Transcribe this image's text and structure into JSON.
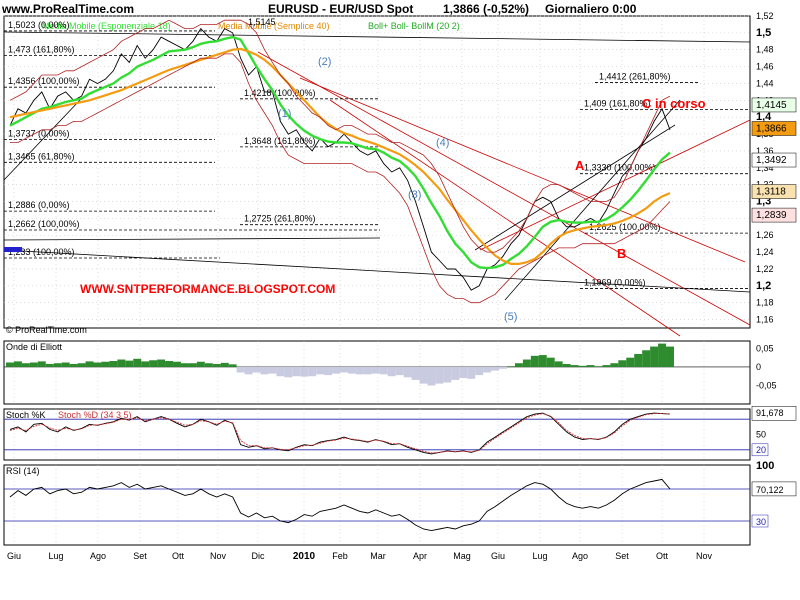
{
  "header": {
    "site": "www.ProRealTime.com",
    "instrument": "EURUSD - EUR/USD Spot",
    "quote": "1,3866 (-0,52%)",
    "period": "Giornaliero  0:00"
  },
  "legend": {
    "ema": "Media Mobile (Esponenziale 18)",
    "sma": "Media Mobile (Semplice 40)",
    "boll": "Boll+  Boll-  BollM (20 2)",
    "price_tag": "1,5145"
  },
  "watermark": "WWW.SNTPERFORMANCE.BLOGSPOT.COM",
  "copyright": "© ProRealTime.com",
  "colors": {
    "price": "#000000",
    "ema": "#33dd33",
    "sma": "#f39c12",
    "bollinger": "#b22222",
    "grid": "#c8c8c8",
    "oscillator": "#2e8b2e",
    "osc_fill": "#c9cbe0",
    "stoch_k": "#000000",
    "stoch_d": "#cc3333",
    "rsi": "#000000",
    "accent": "#ff0000"
  },
  "chart_data": [
    {
      "type": "line",
      "title": "EURUSD - EUR/USD Spot",
      "ylim": [
        1.15,
        1.52
      ],
      "grid": true,
      "y_ticks": [
        "1,52",
        "1,5",
        "1,48",
        "1,46",
        "1,44",
        "1,42",
        "1,4",
        "1,38",
        "1,36",
        "1,34",
        "1,32",
        "1,3",
        "1,28",
        "1,26",
        "1,24",
        "1,22",
        "1,2",
        "1,18",
        "1,16"
      ],
      "x_tick_labels": [
        "Giu",
        "Lug",
        "Ago",
        "Set",
        "Ott",
        "Nov",
        "Dic",
        "2010",
        "Feb",
        "Mar",
        "Apr",
        "Mag",
        "Giu",
        "Lug",
        "Ago",
        "Set",
        "Ott",
        "Nov"
      ],
      "series": [
        {
          "name": "EUR/USD",
          "values": [
            1.39,
            1.41,
            1.405,
            1.42,
            1.43,
            1.41,
            1.425,
            1.43,
            1.42,
            1.425,
            1.445,
            1.44,
            1.445,
            1.455,
            1.475,
            1.465,
            1.485,
            1.47,
            1.48,
            1.495,
            1.49,
            1.485,
            1.48,
            1.49,
            1.505,
            1.495,
            1.49,
            1.505,
            1.5,
            1.47,
            1.45,
            1.46,
            1.43,
            1.43,
            1.395,
            1.38,
            1.385,
            1.37,
            1.36,
            1.375,
            1.365,
            1.37,
            1.38,
            1.37,
            1.36,
            1.355,
            1.36,
            1.345,
            1.335,
            1.34,
            1.325,
            1.3,
            1.27,
            1.24,
            1.23,
            1.22,
            1.22,
            1.21,
            1.195,
            1.2,
            1.22,
            1.225,
            1.235,
            1.25,
            1.26,
            1.28,
            1.3,
            1.305,
            1.3,
            1.28,
            1.27,
            1.27,
            1.275,
            1.28,
            1.275,
            1.29,
            1.31,
            1.33,
            1.34,
            1.36,
            1.375,
            1.395,
            1.41,
            1.385
          ]
        },
        {
          "name": "Media Mobile (Esponenziale 18)",
          "values": [
            1.39,
            1.395,
            1.4,
            1.405,
            1.41,
            1.412,
            1.415,
            1.418,
            1.42,
            1.422,
            1.428,
            1.432,
            1.436,
            1.44,
            1.447,
            1.452,
            1.46,
            1.464,
            1.468,
            1.473,
            1.478,
            1.479,
            1.48,
            1.483,
            1.487,
            1.489,
            1.49,
            1.493,
            1.495,
            1.492,
            1.476,
            1.46,
            1.445,
            1.432,
            1.415,
            1.402,
            1.392,
            1.384,
            1.378,
            1.374,
            1.371,
            1.37,
            1.37,
            1.369,
            1.366,
            1.363,
            1.362,
            1.358,
            1.352,
            1.348,
            1.34,
            1.33,
            1.315,
            1.298,
            1.283,
            1.265,
            1.25,
            1.24,
            1.228,
            1.222,
            1.221,
            1.222,
            1.225,
            1.232,
            1.238,
            1.247,
            1.258,
            1.27,
            1.276,
            1.278,
            1.276,
            1.275,
            1.275,
            1.276,
            1.276,
            1.279,
            1.285,
            1.293,
            1.302,
            1.313,
            1.325,
            1.338,
            1.35,
            1.358
          ]
        },
        {
          "name": "Media Mobile (Semplice 40)",
          "values": [
            1.4,
            1.402,
            1.404,
            1.406,
            1.408,
            1.41,
            1.412,
            1.414,
            1.416,
            1.418,
            1.42,
            1.423,
            1.426,
            1.429,
            1.432,
            1.436,
            1.44,
            1.444,
            1.448,
            1.452,
            1.456,
            1.459,
            1.462,
            1.465,
            1.468,
            1.471,
            1.474,
            1.477,
            1.48,
            1.481,
            1.478,
            1.474,
            1.468,
            1.46,
            1.45,
            1.44,
            1.43,
            1.42,
            1.41,
            1.4,
            1.392,
            1.386,
            1.381,
            1.378,
            1.374,
            1.371,
            1.368,
            1.364,
            1.36,
            1.356,
            1.35,
            1.343,
            1.335,
            1.325,
            1.315,
            1.302,
            1.29,
            1.278,
            1.266,
            1.255,
            1.245,
            1.236,
            1.23,
            1.226,
            1.226,
            1.228,
            1.232,
            1.24,
            1.25,
            1.258,
            1.263,
            1.266,
            1.268,
            1.27,
            1.271,
            1.272,
            1.274,
            1.277,
            1.281,
            1.286,
            1.292,
            1.3,
            1.306,
            1.31
          ]
        },
        {
          "name": "Boll+",
          "values": [
            1.42,
            1.425,
            1.43,
            1.44,
            1.45,
            1.45,
            1.45,
            1.455,
            1.455,
            1.46,
            1.465,
            1.47,
            1.475,
            1.48,
            1.49,
            1.495,
            1.5,
            1.505,
            1.505,
            1.51,
            1.515,
            1.51,
            1.505,
            1.505,
            1.51,
            1.51,
            1.51,
            1.515,
            1.515,
            1.515,
            1.51,
            1.5,
            1.48,
            1.465,
            1.45,
            1.44,
            1.425,
            1.415,
            1.405,
            1.4,
            1.39,
            1.385,
            1.39,
            1.39,
            1.385,
            1.38,
            1.38,
            1.375,
            1.37,
            1.37,
            1.365,
            1.36,
            1.355,
            1.345,
            1.33,
            1.31,
            1.29,
            1.27,
            1.255,
            1.245,
            1.24,
            1.24,
            1.245,
            1.255,
            1.265,
            1.28,
            1.3,
            1.315,
            1.32,
            1.32,
            1.315,
            1.31,
            1.305,
            1.3,
            1.3,
            1.3,
            1.305,
            1.32,
            1.34,
            1.36,
            1.38,
            1.4,
            1.42,
            1.425
          ]
        },
        {
          "name": "Boll-",
          "values": [
            1.37,
            1.37,
            1.375,
            1.38,
            1.385,
            1.385,
            1.39,
            1.39,
            1.395,
            1.395,
            1.4,
            1.405,
            1.41,
            1.415,
            1.42,
            1.425,
            1.43,
            1.435,
            1.44,
            1.445,
            1.45,
            1.455,
            1.46,
            1.465,
            1.47,
            1.47,
            1.47,
            1.475,
            1.475,
            1.465,
            1.44,
            1.42,
            1.405,
            1.39,
            1.37,
            1.355,
            1.35,
            1.345,
            1.345,
            1.345,
            1.345,
            1.345,
            1.345,
            1.345,
            1.34,
            1.335,
            1.335,
            1.33,
            1.32,
            1.31,
            1.295,
            1.27,
            1.245,
            1.22,
            1.2,
            1.19,
            1.185,
            1.185,
            1.18,
            1.18,
            1.185,
            1.19,
            1.2,
            1.21,
            1.22,
            1.225,
            1.23,
            1.235,
            1.24,
            1.245,
            1.245,
            1.245,
            1.25,
            1.25,
            1.25,
            1.25,
            1.25,
            1.255,
            1.26,
            1.265,
            1.27,
            1.28,
            1.29,
            1.3
          ]
        }
      ],
      "price_labels": [
        "1,5145",
        "1,4145",
        "1,3866",
        "1,3492",
        "1,3118",
        "1,2839"
      ],
      "fibonacci": [
        {
          "label": "1,5023 (0,00%)",
          "y": 1.5023
        },
        {
          "label": "1,473 (161,80%)",
          "y": 1.473
        },
        {
          "label": "1,4356 (100,00%)",
          "y": 1.4356
        },
        {
          "label": "1,4218 (100,00%)",
          "y": 1.4218
        },
        {
          "label": "1,3737 (0,00%)",
          "y": 1.3737
        },
        {
          "label": "1,3648 (161,80%)",
          "y": 1.3648
        },
        {
          "label": "1,3465 (61,80%)",
          "y": 1.3465
        },
        {
          "label": "1,2886 (0,00%)",
          "y": 1.2886
        },
        {
          "label": "1,2725 (261,80%)",
          "y": 1.2725
        },
        {
          "label": "1,2662 (100,00%)",
          "y": 1.2662
        },
        {
          "label": "1,233 (100,00%)",
          "y": 1.233
        },
        {
          "label": "1,4412 (261,80%)",
          "y": 1.4412
        },
        {
          "label": "1,409 (161,80%)",
          "y": 1.409
        },
        {
          "label": "1,3330 (100,00%)",
          "y": 1.333
        },
        {
          "label": "1,2625 (100,00%)",
          "y": 1.2625
        },
        {
          "label": "1,1969 (0,00%)",
          "y": 1.1969
        }
      ],
      "annotations": [
        {
          "text": "(1)",
          "color": "#4a7ebb"
        },
        {
          "text": "(2)",
          "color": "#4a7ebb"
        },
        {
          "text": "(3)",
          "color": "#4a7ebb"
        },
        {
          "text": "(4)",
          "color": "#4a7ebb"
        },
        {
          "text": "(5)",
          "color": "#4a7ebb"
        },
        {
          "text": "A",
          "color": "#ff0000"
        },
        {
          "text": "B",
          "color": "#ff0000"
        },
        {
          "text": "C in corso",
          "color": "#ff0000"
        }
      ]
    },
    {
      "type": "bar",
      "title": "Onde di Elliott",
      "ylim": [
        -0.1,
        0.07
      ],
      "y_ticks": [
        "0,05",
        "0",
        "-0,05"
      ],
      "values": [
        0.012,
        0.015,
        0.01,
        0.012,
        0.015,
        0.008,
        0.01,
        0.012,
        0.008,
        0.01,
        0.015,
        0.012,
        0.014,
        0.016,
        0.02,
        0.017,
        0.022,
        0.015,
        0.018,
        0.02,
        0.016,
        0.014,
        0.01,
        0.01,
        0.014,
        0.01,
        0.008,
        0.011,
        0.007,
        -0.015,
        -0.02,
        -0.015,
        -0.02,
        -0.018,
        -0.025,
        -0.028,
        -0.025,
        -0.026,
        -0.025,
        -0.02,
        -0.022,
        -0.018,
        -0.015,
        -0.018,
        -0.02,
        -0.02,
        -0.018,
        -0.02,
        -0.025,
        -0.022,
        -0.028,
        -0.035,
        -0.045,
        -0.05,
        -0.045,
        -0.042,
        -0.035,
        -0.03,
        -0.032,
        -0.022,
        -0.015,
        -0.01,
        -0.005,
        0.002,
        0.01,
        0.02,
        0.03,
        0.032,
        0.025,
        0.015,
        0.008,
        0.005,
        0.003,
        0.005,
        0.002,
        0.005,
        0.01,
        0.018,
        0.025,
        0.035,
        0.045,
        0.055,
        0.063,
        0.055
      ]
    },
    {
      "type": "line",
      "title": "Stoch %K",
      "legend": [
        "Stoch %K",
        "Stoch %D (34 3 5)"
      ],
      "ylim": [
        0,
        100
      ],
      "y_ticks": [
        "91,678",
        "50",
        "20"
      ],
      "reference_lines": [
        80,
        20
      ],
      "series": [
        {
          "name": "Stoch %K",
          "values": [
            60,
            65,
            55,
            70,
            72,
            60,
            55,
            65,
            58,
            62,
            70,
            68,
            72,
            75,
            82,
            78,
            85,
            75,
            80,
            85,
            80,
            72,
            65,
            70,
            80,
            75,
            68,
            78,
            72,
            30,
            25,
            28,
            22,
            24,
            20,
            18,
            25,
            30,
            28,
            35,
            38,
            40,
            45,
            40,
            38,
            35,
            40,
            36,
            30,
            32,
            25,
            20,
            15,
            12,
            15,
            18,
            16,
            18,
            15,
            20,
            35,
            45,
            55,
            65,
            75,
            85,
            90,
            92,
            85,
            70,
            55,
            45,
            40,
            42,
            40,
            45,
            55,
            70,
            80,
            85,
            90,
            92,
            91,
            90
          ]
        },
        {
          "name": "Stoch %D (34 3 5)",
          "values": [
            58,
            62,
            58,
            66,
            70,
            63,
            58,
            62,
            59,
            61,
            68,
            69,
            71,
            74,
            80,
            79,
            83,
            77,
            80,
            83,
            80,
            74,
            68,
            70,
            77,
            75,
            70,
            76,
            73,
            38,
            28,
            28,
            24,
            24,
            21,
            20,
            24,
            28,
            29,
            33,
            37,
            39,
            43,
            41,
            39,
            36,
            39,
            37,
            32,
            32,
            27,
            22,
            17,
            14,
            15,
            17,
            16,
            17,
            16,
            19,
            32,
            43,
            53,
            63,
            73,
            83,
            88,
            91,
            86,
            73,
            58,
            48,
            42,
            42,
            41,
            44,
            53,
            67,
            78,
            84,
            89,
            91,
            91,
            90
          ]
        }
      ]
    },
    {
      "type": "line",
      "title": "RSI (14)",
      "ylim": [
        0,
        100
      ],
      "y_ticks": [
        "100",
        "70,122",
        "30"
      ],
      "reference_lines": [
        70,
        30
      ],
      "series": [
        {
          "name": "RSI (14)",
          "values": [
            60,
            68,
            62,
            70,
            72,
            64,
            68,
            70,
            64,
            66,
            72,
            70,
            72,
            74,
            78,
            72,
            76,
            70,
            72,
            74,
            70,
            66,
            62,
            64,
            70,
            64,
            60,
            64,
            60,
            40,
            35,
            40,
            34,
            36,
            30,
            28,
            32,
            38,
            36,
            42,
            44,
            46,
            50,
            46,
            42,
            40,
            44,
            40,
            36,
            38,
            32,
            25,
            20,
            18,
            20,
            22,
            20,
            24,
            26,
            30,
            42,
            48,
            55,
            62,
            68,
            74,
            78,
            76,
            70,
            60,
            52,
            48,
            46,
            48,
            46,
            50,
            56,
            64,
            70,
            74,
            78,
            80,
            82,
            70
          ]
        }
      ]
    }
  ]
}
